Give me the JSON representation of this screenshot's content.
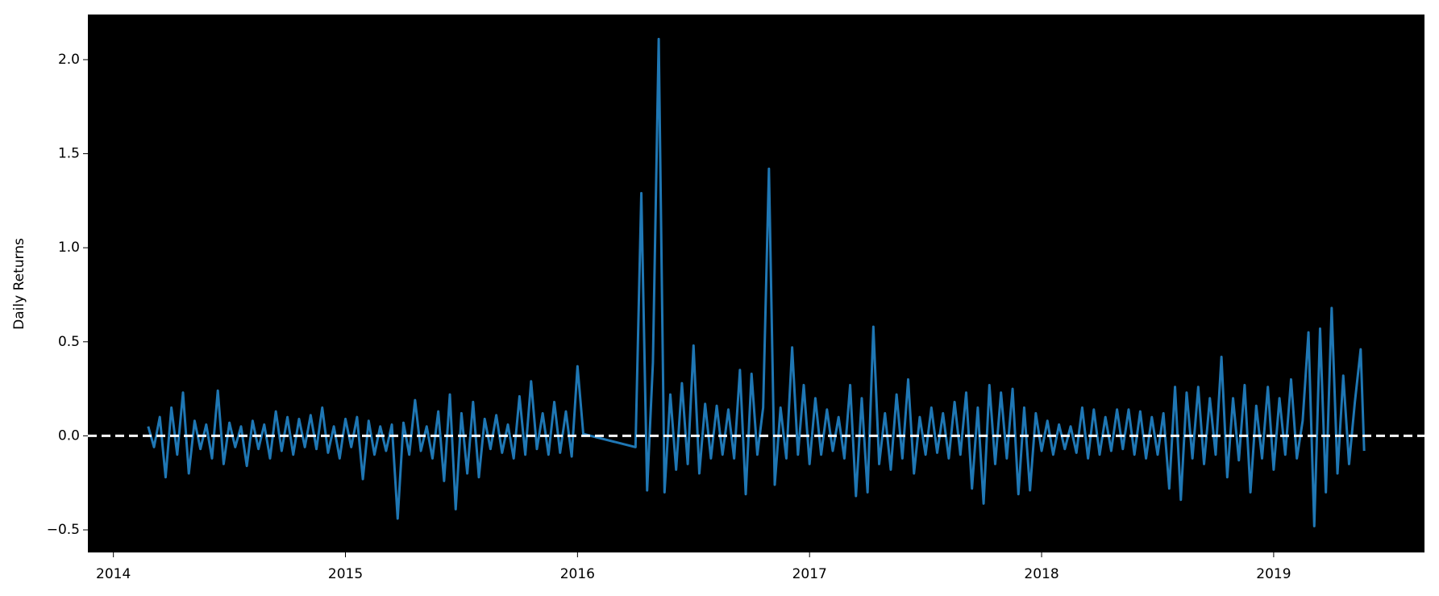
{
  "chart_data": {
    "type": "line",
    "y_label": "Daily Returns",
    "x": [
      2014.15,
      2014.175,
      2014.2,
      2014.225,
      2014.25,
      2014.275,
      2014.3,
      2014.325,
      2014.35,
      2014.375,
      2014.4,
      2014.425,
      2014.45,
      2014.475,
      2014.5,
      2014.525,
      2014.55,
      2014.575,
      2014.6,
      2014.625,
      2014.65,
      2014.675,
      2014.7,
      2014.725,
      2014.75,
      2014.775,
      2014.8,
      2014.825,
      2014.85,
      2014.875,
      2014.9,
      2014.925,
      2014.95,
      2014.975,
      2015.0,
      2015.025,
      2015.05,
      2015.075,
      2015.1,
      2015.125,
      2015.15,
      2015.175,
      2015.2,
      2015.225,
      2015.25,
      2015.275,
      2015.3,
      2015.325,
      2015.35,
      2015.375,
      2015.4,
      2015.425,
      2015.45,
      2015.475,
      2015.5,
      2015.525,
      2015.55,
      2015.575,
      2015.6,
      2015.625,
      2015.65,
      2015.675,
      2015.7,
      2015.725,
      2015.75,
      2015.775,
      2015.8,
      2015.825,
      2015.85,
      2015.875,
      2015.9,
      2015.925,
      2015.95,
      2015.975,
      2016.0,
      2016.025,
      2016.25,
      2016.275,
      2016.3,
      2016.325,
      2016.35,
      2016.375,
      2016.4,
      2016.425,
      2016.45,
      2016.475,
      2016.5,
      2016.525,
      2016.55,
      2016.575,
      2016.6,
      2016.625,
      2016.65,
      2016.675,
      2016.7,
      2016.725,
      2016.75,
      2016.775,
      2016.8,
      2016.825,
      2016.85,
      2016.875,
      2016.9,
      2016.925,
      2016.95,
      2016.975,
      2017.0,
      2017.025,
      2017.05,
      2017.075,
      2017.1,
      2017.125,
      2017.15,
      2017.175,
      2017.2,
      2017.225,
      2017.25,
      2017.275,
      2017.3,
      2017.325,
      2017.35,
      2017.375,
      2017.4,
      2017.425,
      2017.45,
      2017.475,
      2017.5,
      2017.525,
      2017.55,
      2017.575,
      2017.6,
      2017.625,
      2017.65,
      2017.675,
      2017.7,
      2017.725,
      2017.75,
      2017.775,
      2017.8,
      2017.825,
      2017.85,
      2017.875,
      2017.9,
      2017.925,
      2017.95,
      2017.975,
      2018.0,
      2018.025,
      2018.05,
      2018.075,
      2018.1,
      2018.125,
      2018.15,
      2018.175,
      2018.2,
      2018.225,
      2018.25,
      2018.275,
      2018.3,
      2018.325,
      2018.35,
      2018.375,
      2018.4,
      2018.425,
      2018.45,
      2018.475,
      2018.5,
      2018.525,
      2018.55,
      2018.575,
      2018.6,
      2018.625,
      2018.65,
      2018.675,
      2018.7,
      2018.725,
      2018.75,
      2018.775,
      2018.8,
      2018.825,
      2018.85,
      2018.875,
      2018.9,
      2018.925,
      2018.95,
      2018.975,
      2019.0,
      2019.025,
      2019.05,
      2019.075,
      2019.1,
      2019.125,
      2019.15,
      2019.175,
      2019.2,
      2019.225,
      2019.25,
      2019.275,
      2019.3,
      2019.325,
      2019.35,
      2019.375,
      2019.39
    ],
    "values": [
      0.05,
      -0.06,
      0.1,
      -0.22,
      0.15,
      -0.1,
      0.23,
      -0.2,
      0.08,
      -0.07,
      0.06,
      -0.12,
      0.24,
      -0.15,
      0.07,
      -0.06,
      0.05,
      -0.16,
      0.08,
      -0.07,
      0.06,
      -0.12,
      0.13,
      -0.08,
      0.1,
      -0.1,
      0.09,
      -0.06,
      0.11,
      -0.07,
      0.15,
      -0.09,
      0.05,
      -0.12,
      0.09,
      -0.06,
      0.1,
      -0.23,
      0.08,
      -0.1,
      0.05,
      -0.08,
      0.06,
      -0.44,
      0.07,
      -0.1,
      0.19,
      -0.08,
      0.05,
      -0.12,
      0.13,
      -0.24,
      0.22,
      -0.39,
      0.12,
      -0.2,
      0.18,
      -0.22,
      0.09,
      -0.07,
      0.11,
      -0.09,
      0.06,
      -0.12,
      0.21,
      -0.1,
      0.29,
      -0.07,
      0.12,
      -0.1,
      0.18,
      -0.09,
      0.13,
      -0.11,
      0.37,
      0.01,
      -0.06,
      1.29,
      -0.29,
      0.39,
      2.11,
      -0.3,
      0.22,
      -0.18,
      0.28,
      -0.15,
      0.48,
      -0.2,
      0.17,
      -0.12,
      0.16,
      -0.1,
      0.14,
      -0.12,
      0.35,
      -0.31,
      0.33,
      -0.1,
      0.15,
      1.42,
      -0.26,
      0.15,
      -0.12,
      0.47,
      -0.1,
      0.27,
      -0.15,
      0.2,
      -0.1,
      0.14,
      -0.08,
      0.1,
      -0.12,
      0.27,
      -0.32,
      0.2,
      -0.3,
      0.58,
      -0.15,
      0.12,
      -0.18,
      0.22,
      -0.12,
      0.3,
      -0.2,
      0.1,
      -0.1,
      0.15,
      -0.09,
      0.12,
      -0.12,
      0.18,
      -0.1,
      0.23,
      -0.28,
      0.15,
      -0.36,
      0.27,
      -0.15,
      0.23,
      -0.12,
      0.25,
      -0.31,
      0.15,
      -0.29,
      0.12,
      -0.08,
      0.08,
      -0.1,
      0.06,
      -0.07,
      0.05,
      -0.09,
      0.15,
      -0.12,
      0.14,
      -0.1,
      0.1,
      -0.08,
      0.14,
      -0.07,
      0.14,
      -0.1,
      0.13,
      -0.12,
      0.1,
      -0.1,
      0.12,
      -0.28,
      0.26,
      -0.34,
      0.23,
      -0.12,
      0.26,
      -0.15,
      0.2,
      -0.1,
      0.42,
      -0.22,
      0.2,
      -0.13,
      0.27,
      -0.3,
      0.16,
      -0.12,
      0.26,
      -0.18,
      0.2,
      -0.1,
      0.3,
      -0.12,
      0.08,
      0.55,
      -0.48,
      0.57,
      -0.3,
      0.68,
      -0.2,
      0.32,
      -0.15,
      0.18,
      0.46,
      -0.08
    ],
    "color": "#1f77b4",
    "background": "#000000",
    "reference_line": {
      "y": 0,
      "color": "#ffffff",
      "dashed": true
    },
    "xlim": [
      2013.89,
      2019.65
    ],
    "xticks": [
      2014,
      2015,
      2016,
      2017,
      2018,
      2019
    ],
    "ylim": [
      -0.62,
      2.24
    ],
    "yticks": [
      {
        "value": -0.5,
        "label": "−0.5"
      },
      {
        "value": 0,
        "label": "0.0"
      },
      0.5,
      {
        "value": 1,
        "label": "1.0"
      },
      1.5,
      {
        "value": 2,
        "label": "2.0"
      }
    ],
    "grid": false
  }
}
